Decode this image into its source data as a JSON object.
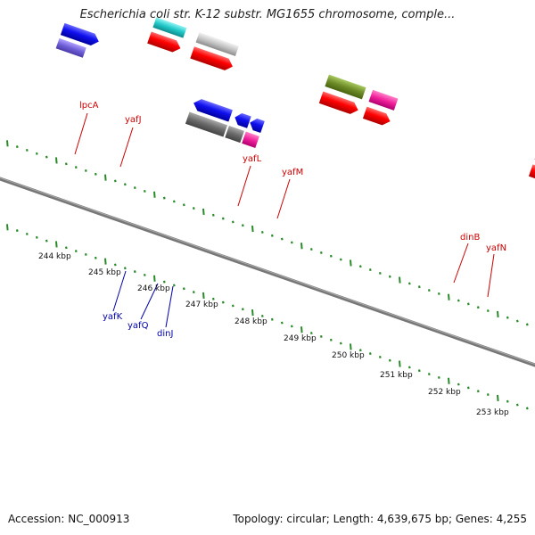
{
  "title": "Escherichia coli str. K-12 substr. MG1655 chromosome, comple...",
  "footer": {
    "accession": "Accession: NC_000913",
    "topology": "Topology: circular; Length: 4,639,675 bp; Genes: 4,255"
  },
  "colors": {
    "backbone": "#777777",
    "forward_label": "#cc0000",
    "reverse_label": "#0000aa",
    "tick": "#2a8a2a",
    "cds": "#ff0000"
  },
  "kbp_labels": [
    "244 kbp",
    "245 kbp",
    "246 kbp",
    "247 kbp",
    "248 kbp",
    "249 kbp",
    "250 kbp",
    "251 kbp",
    "252 kbp",
    "253 kbp"
  ],
  "forward_genes": [
    "lpcA",
    "yafJ",
    "yafL",
    "yafM",
    "dinB",
    "yafN"
  ],
  "reverse_genes": [
    "yafK",
    "yafQ",
    "dinJ"
  ]
}
